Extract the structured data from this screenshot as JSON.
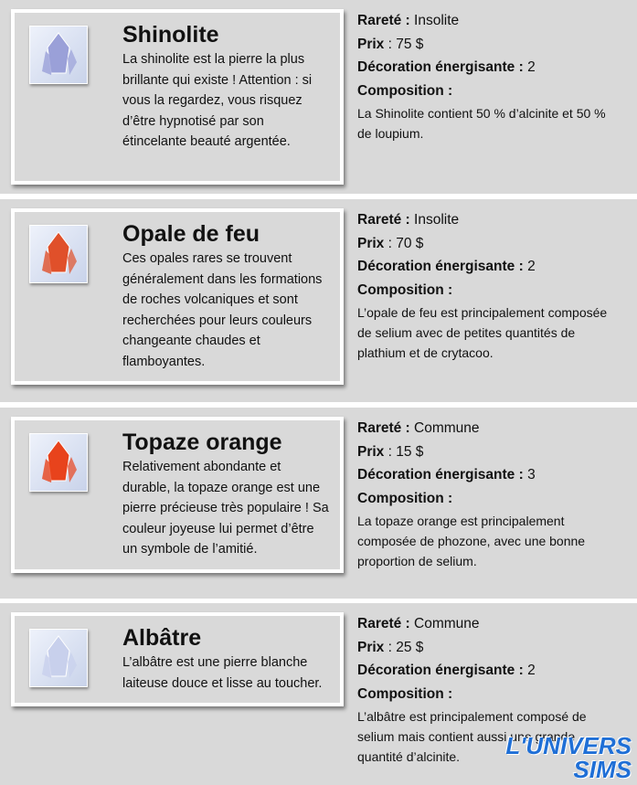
{
  "stones": [
    {
      "name": "Shinolite",
      "description": "La shinolite est la pierre la plus brillante qui existe ! Attention : si vous la regardez, vous risquez d’être hypnotisé par son étincelante beauté argentée.",
      "rarity_label": "Rareté :",
      "rarity": "Insolite",
      "price_label": "Prix",
      "price": ": 75 $",
      "decor_label": "Décoration énergisante :",
      "decor": "2",
      "composition_label": "Composition :",
      "composition": "La Shinolite contient 50 % d’alcinite et 50 % de loupium.",
      "color": "#9aa0d8"
    },
    {
      "name": "Opale de feu",
      "description": "Ces opales rares se trouvent généralement dans les formations de roches volcaniques et sont recherchées pour leurs couleurs changeante chaudes et flamboyantes.",
      "rarity_label": "Rareté :",
      "rarity": "Insolite",
      "price_label": "Prix",
      "price": ": 70 $",
      "decor_label": "Décoration énergisante :",
      "decor": "2",
      "composition_label": "Composition :",
      "composition": "L’opale de feu est principalement composée de selium avec de petites quantités de plathium et de crytacoo.",
      "color": "#e0502a"
    },
    {
      "name": "Topaze orange",
      "description": "Relativement abondante et durable, la topaze orange est une pierre précieuse très populaire ! Sa couleur joyeuse lui permet d’être un symbole de l’amitié.",
      "rarity_label": "Rareté :",
      "rarity": "Commune",
      "price_label": "Prix",
      "price": ": 15 $",
      "decor_label": "Décoration énergisante :",
      "decor": "3",
      "composition_label": "Composition :",
      "composition": "La topaze orange est principalement composée de phozone, avec une bonne proportion de selium.",
      "color": "#e8431c"
    },
    {
      "name": "Albâtre",
      "description": "L’albâtre est une pierre blanche laiteuse douce et lisse au toucher.",
      "rarity_label": "Rareté :",
      "rarity": "Commune",
      "price_label": "Prix",
      "price": ": 25 $",
      "decor_label": "Décoration énergisante :",
      "decor": "2",
      "composition_label": "Composition :",
      "composition": "L’albâtre est principalement composé de selium mais contient aussi une grande quantité d’alcinite.",
      "color": "#c8d0ec"
    }
  ],
  "watermark": {
    "line1": "L'UNIVERS",
    "line2": "SIMS"
  }
}
